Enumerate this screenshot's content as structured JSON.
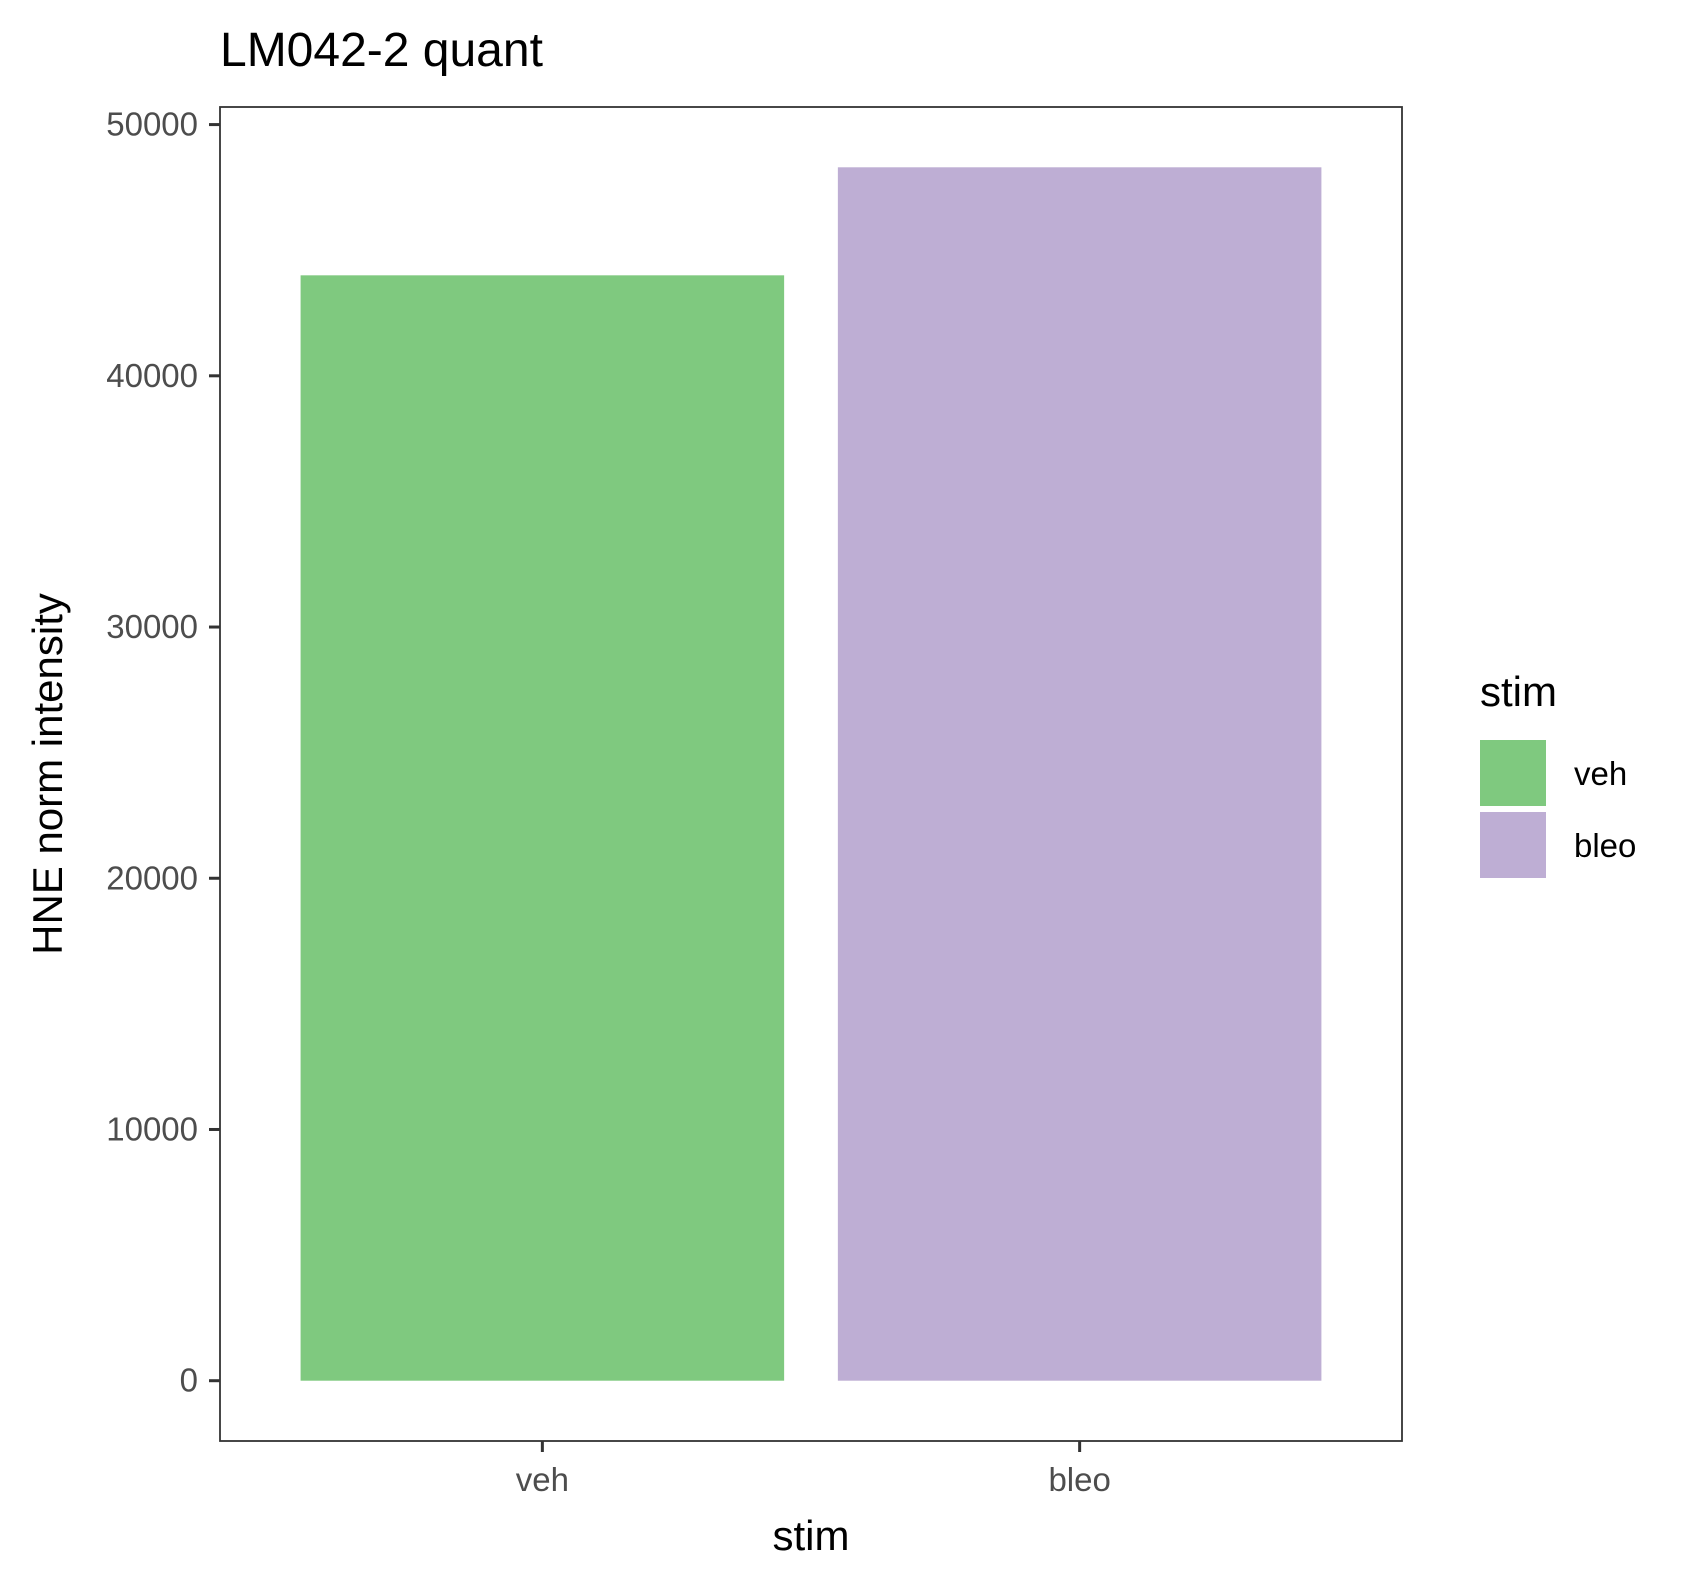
{
  "chart_data": {
    "type": "bar",
    "title": "LM042-2 quant",
    "xlabel": "stim",
    "ylabel": "HNE norm intensity",
    "categories": [
      "veh",
      "bleo"
    ],
    "values": [
      44000,
      48300
    ],
    "colors": [
      "#7fc97f",
      "#beaed4"
    ],
    "yticks": [
      0,
      10000,
      20000,
      30000,
      40000,
      50000
    ],
    "ylim": [
      -2400,
      50700
    ],
    "grid": false,
    "legend": {
      "title": "stim",
      "position": "right",
      "entries": [
        {
          "label": "veh",
          "color": "#7fc97f"
        },
        {
          "label": "bleo",
          "color": "#beaed4"
        }
      ]
    }
  }
}
